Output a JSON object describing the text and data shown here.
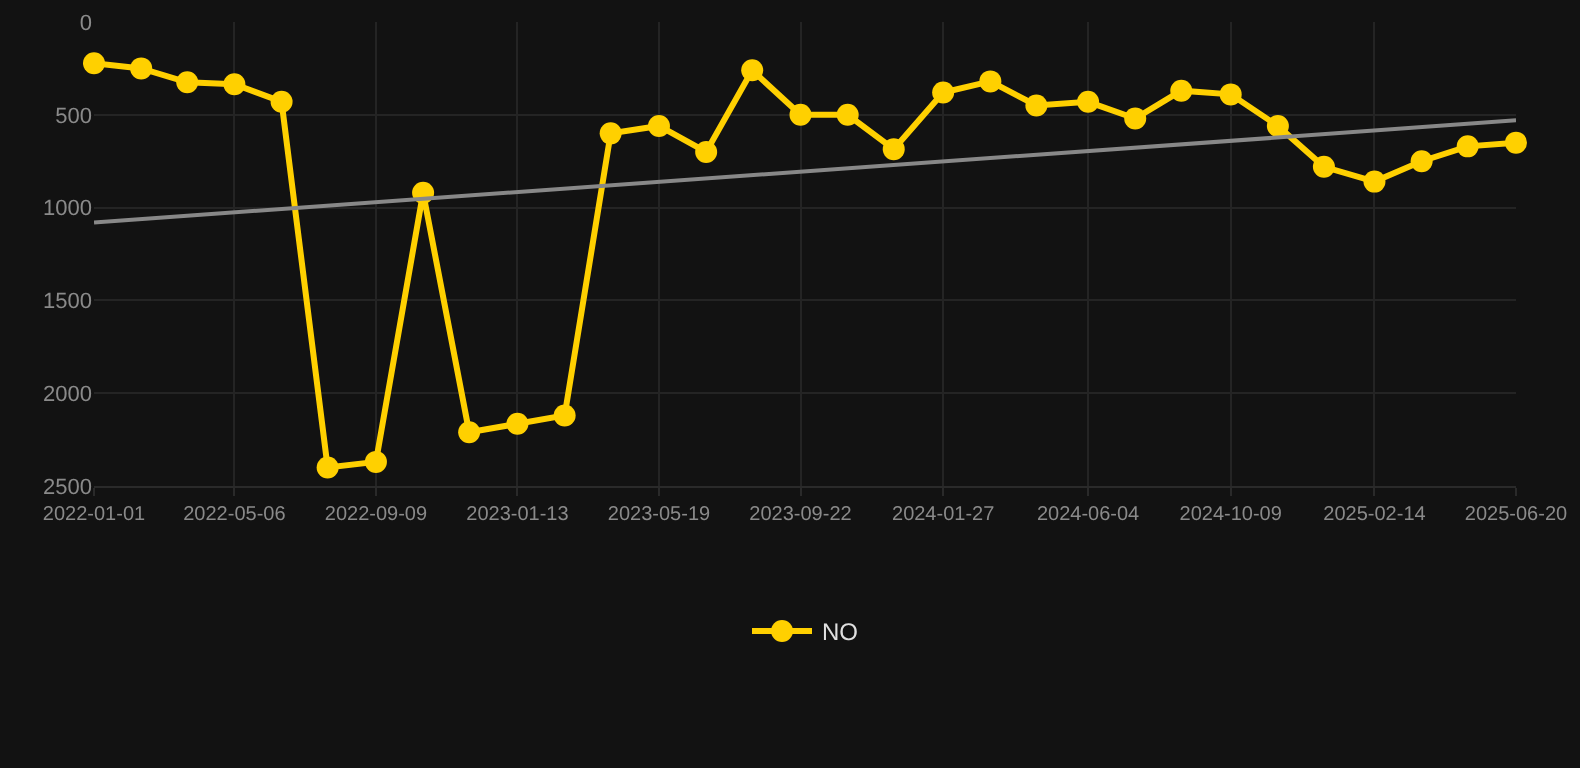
{
  "chart_data": {
    "type": "line",
    "x": [
      "2022-01-01",
      "2022-02-12",
      "2022-03-25",
      "2022-05-06",
      "2022-06-17",
      "2022-07-28",
      "2022-09-09",
      "2022-10-21",
      "2022-12-01",
      "2023-01-13",
      "2023-02-24",
      "2023-04-06",
      "2023-05-19",
      "2023-06-30",
      "2023-08-10",
      "2023-09-22",
      "2023-11-03",
      "2023-12-14",
      "2024-01-27",
      "2024-03-09",
      "2024-04-19",
      "2024-06-04",
      "2024-07-16",
      "2024-08-26",
      "2024-10-09",
      "2024-11-20",
      "2024-12-31",
      "2025-02-14",
      "2025-03-28",
      "2025-05-08",
      "2025-06-20"
    ],
    "series": [
      {
        "name": "NO",
        "color": "#ffd000",
        "marker": "circle",
        "values": [
          222,
          250,
          325,
          335,
          430,
          2400,
          2370,
          920,
          2210,
          2165,
          2120,
          600,
          560,
          700,
          260,
          500,
          500,
          685,
          380,
          320,
          450,
          430,
          520,
          370,
          390,
          560,
          780,
          860,
          750,
          670,
          650
        ]
      },
      {
        "type": "line",
        "color": "#888888",
        "marker": "none",
        "x": [
          "2022-01-01",
          "2025-06-20"
        ],
        "values": [
          1080,
          530
        ]
      }
    ],
    "ylim": [
      2500,
      0
    ],
    "yticks": [
      0,
      500,
      1000,
      1500,
      2000,
      2500
    ],
    "xlim": [
      "2022-01-01",
      "2025-06-20"
    ],
    "xticks": [
      "2022-01-01",
      "2022-05-06",
      "2022-09-09",
      "2023-01-13",
      "2023-05-19",
      "2023-09-22",
      "2024-01-27",
      "2024-06-04",
      "2024-10-09",
      "2025-02-14",
      "2025-06-20"
    ],
    "grid": true,
    "legend": "bottom"
  }
}
